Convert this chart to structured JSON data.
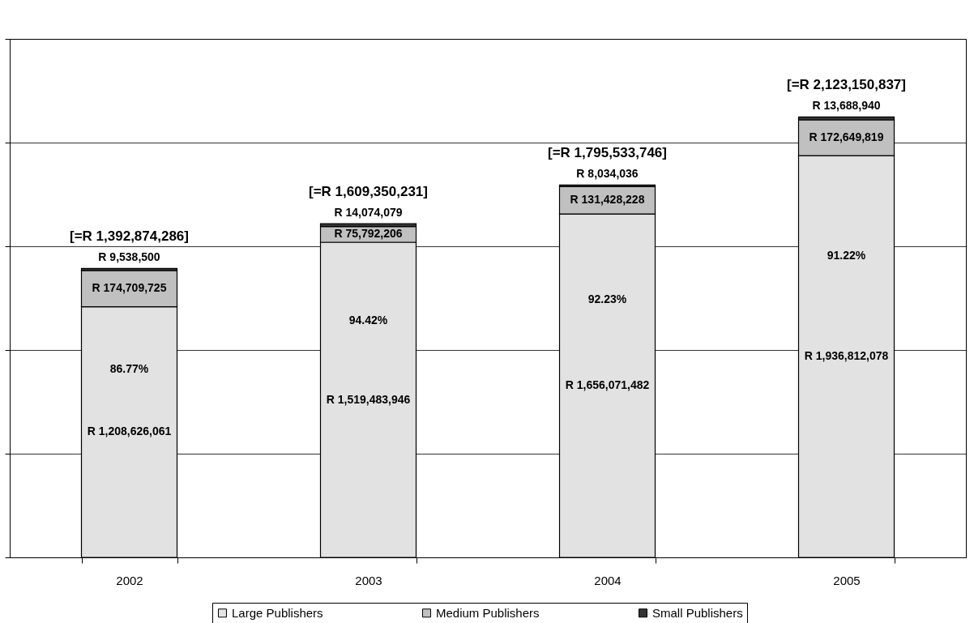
{
  "chart_data": {
    "type": "bar",
    "stacked": true,
    "categories": [
      "2002",
      "2003",
      "2004",
      "2005"
    ],
    "series": [
      {
        "name": "Large Publishers",
        "color": "#e2e2e2",
        "values": [
          1208626061,
          1519483946,
          1656071482,
          1936812078
        ],
        "value_labels": [
          "R 1,208,626,061",
          "R 1,519,483,946",
          "R 1,656,071,482",
          "R 1,936,812,078"
        ]
      },
      {
        "name": "Medium Publishers",
        "color": "#c0c0c0",
        "values": [
          174709725,
          75792206,
          131428228,
          172649819
        ],
        "value_labels": [
          "R 174,709,725",
          "R 75,792,206",
          "R 131,428,228",
          "R 172,649,819"
        ]
      },
      {
        "name": "Small Publishers",
        "color": "#333333",
        "values": [
          9538500,
          14074079,
          8034036,
          13688940
        ],
        "value_labels": [
          "R 9,538,500",
          "R 14,074,079",
          "R 8,034,036",
          "R 13,688,940"
        ]
      }
    ],
    "totals": [
      "[=R 1,392,874,286]",
      "[=R 1,609,350,231]",
      "[=R 1,795,533,746]",
      "[=R 2,123,150,837]"
    ],
    "annotations": [
      "86.77%",
      "94.42%",
      "92.23%",
      "91.22%"
    ],
    "ylim": [
      0,
      2500000000
    ],
    "yticks": [
      {
        "value": 0,
        "label": null
      },
      {
        "value": 500000000,
        "label": null
      },
      {
        "value": 1000000000,
        "label": null
      },
      {
        "value": 1500000000,
        "label": null
      },
      {
        "value": 2000000000,
        "label": null
      },
      {
        "value": 2500000000,
        "label": null
      }
    ],
    "tick_labels": "x",
    "grid": "y",
    "legend": "bottom"
  }
}
